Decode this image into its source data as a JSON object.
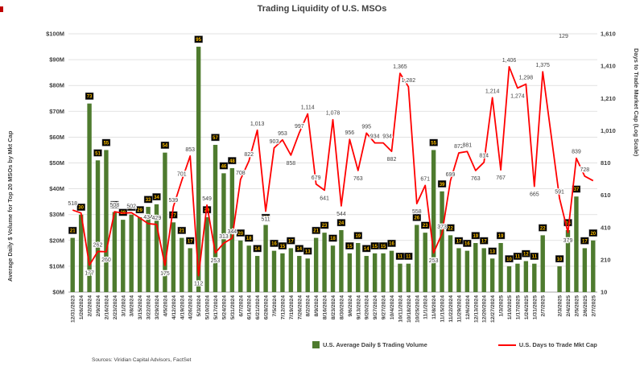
{
  "chart_data": {
    "type": "bar+line",
    "title": "Trading Liquidity of U.S. MSOs",
    "source": "Sources: Viridian Capital Advisors, FactSet",
    "left_axis": {
      "title": "Average Daily $ Volume for Top 20 MSOs by Mkt Cap",
      "min": 0,
      "max": 100,
      "ticks": [
        "$0M",
        "$10M",
        "$20M",
        "$30M",
        "$40M",
        "$50M",
        "$60M",
        "$70M",
        "$80M",
        "$90M",
        "$100M"
      ]
    },
    "right_axis": {
      "title": "Days to Trade Market Cap (Log Scale)",
      "min": 10,
      "max": 1610,
      "ticks": [
        "10",
        "210",
        "410",
        "610",
        "810",
        "1,010",
        "1,210",
        "1,410",
        "1,610"
      ]
    },
    "legend": [
      {
        "label": "U.S. Average Daily $ Trading Volume",
        "type": "bar",
        "color": "#4e7b2e"
      },
      {
        "label": "U.S. Days to Trade Mkt Cap",
        "type": "line",
        "color": "#ff0000"
      }
    ],
    "bar_color": "#4e7b2e",
    "line_color": "#ff0000",
    "bar_label_box": {
      "bg": "#000000",
      "fg": "#ffc000"
    },
    "grid_color": "#d9d9d9",
    "annotation": "129",
    "weekly": {
      "dates": [
        "12/31/2023",
        "1/26/2024",
        "2/2/2024",
        "2/9/2024",
        "2/16/2024",
        "2/23/2024",
        "3/1/2024",
        "3/8/2024",
        "3/15/2024",
        "3/22/2024",
        "3/29/2024",
        "4/5/2024",
        "4/12/2024",
        "4/19/2024",
        "4/26/2024",
        "5/3/2024",
        "5/10/2024",
        "5/17/2024",
        "5/24/2024",
        "5/31/2024",
        "6/7/2024",
        "6/14/2024",
        "6/21/2024",
        "6/28/2024",
        "7/5/2024",
        "7/12/2024",
        "7/19/2024",
        "7/26/2024",
        "8/2/2024",
        "8/9/2024",
        "8/16/2024",
        "8/23/2024",
        "8/30/2024",
        "9/6/2024",
        "9/13/2024",
        "9/20/2024",
        "9/27/2024",
        "9/27/2024",
        "10/4/2024",
        "10/11/2024",
        "10/18/2024",
        "10/25/2024",
        "11/1/2024",
        "11/8/2024",
        "11/15/2024",
        "11/22/2024",
        "11/29/2024",
        "12/6/2024",
        "12/13/2024",
        "12/20/2024",
        "12/27/2024",
        "1/3/2025",
        "1/10/2025",
        "1/17/2025",
        "1/24/2025",
        "1/31/2025",
        "2/7/2025"
      ],
      "volume": [
        21,
        30,
        73,
        51,
        55,
        31,
        28,
        30,
        29,
        33,
        34,
        54,
        27,
        21,
        17,
        95,
        29,
        57,
        46,
        48,
        20,
        18,
        14,
        26,
        16,
        15,
        17,
        14,
        13,
        21,
        23,
        18,
        24,
        15,
        19,
        14,
        15,
        15,
        16,
        11,
        11,
        26,
        23,
        55,
        39,
        22,
        17,
        16,
        19,
        17,
        13,
        19,
        10,
        11,
        12,
        11,
        22
      ],
      "days": [
        518,
        500,
        177,
        262,
        260,
        508,
        499,
        502,
        470,
        434,
        429,
        175,
        539,
        701,
        853,
        112,
        549,
        253,
        313,
        344,
        708,
        822,
        1013,
        511,
        903,
        953,
        858,
        997,
        1114,
        679,
        641,
        1078,
        544,
        956,
        763,
        995,
        934,
        934,
        882,
        1365,
        1282,
        558,
        671,
        253,
        373,
        699,
        872,
        881,
        763,
        814,
        1214,
        767,
        1406,
        1274,
        1298,
        665,
        1375
      ],
      "days_labels": [
        "518",
        "",
        "177",
        "262",
        "260",
        "508",
        "",
        "502",
        "",
        "434",
        "429",
        "175",
        "539",
        "701",
        "853",
        "112",
        "549",
        "253",
        "313",
        "344",
        "708",
        "822",
        "1,013",
        "511",
        "903",
        "953",
        "858",
        "997",
        "1,114",
        "679",
        "641",
        "1,078",
        "544",
        "956",
        "763",
        "995",
        "934",
        "934",
        "882",
        "1,365",
        "1,282",
        "558",
        "671",
        "253",
        "373",
        "699",
        "872",
        "881",
        "763",
        "814",
        "1,214",
        "767",
        "1,406",
        "1,274",
        "1,298",
        "665",
        "1,375"
      ]
    },
    "daily": {
      "dates": [
        "2/3/2025",
        "2/4/2025",
        "2/5/2025",
        "2/6/2025",
        "2/7/2025"
      ],
      "volume": [
        10,
        24,
        37,
        17,
        20
      ],
      "days": [
        591,
        379,
        839,
        728,
        700
      ],
      "days_labels": [
        "591",
        "379",
        "839",
        "728",
        ""
      ]
    }
  }
}
